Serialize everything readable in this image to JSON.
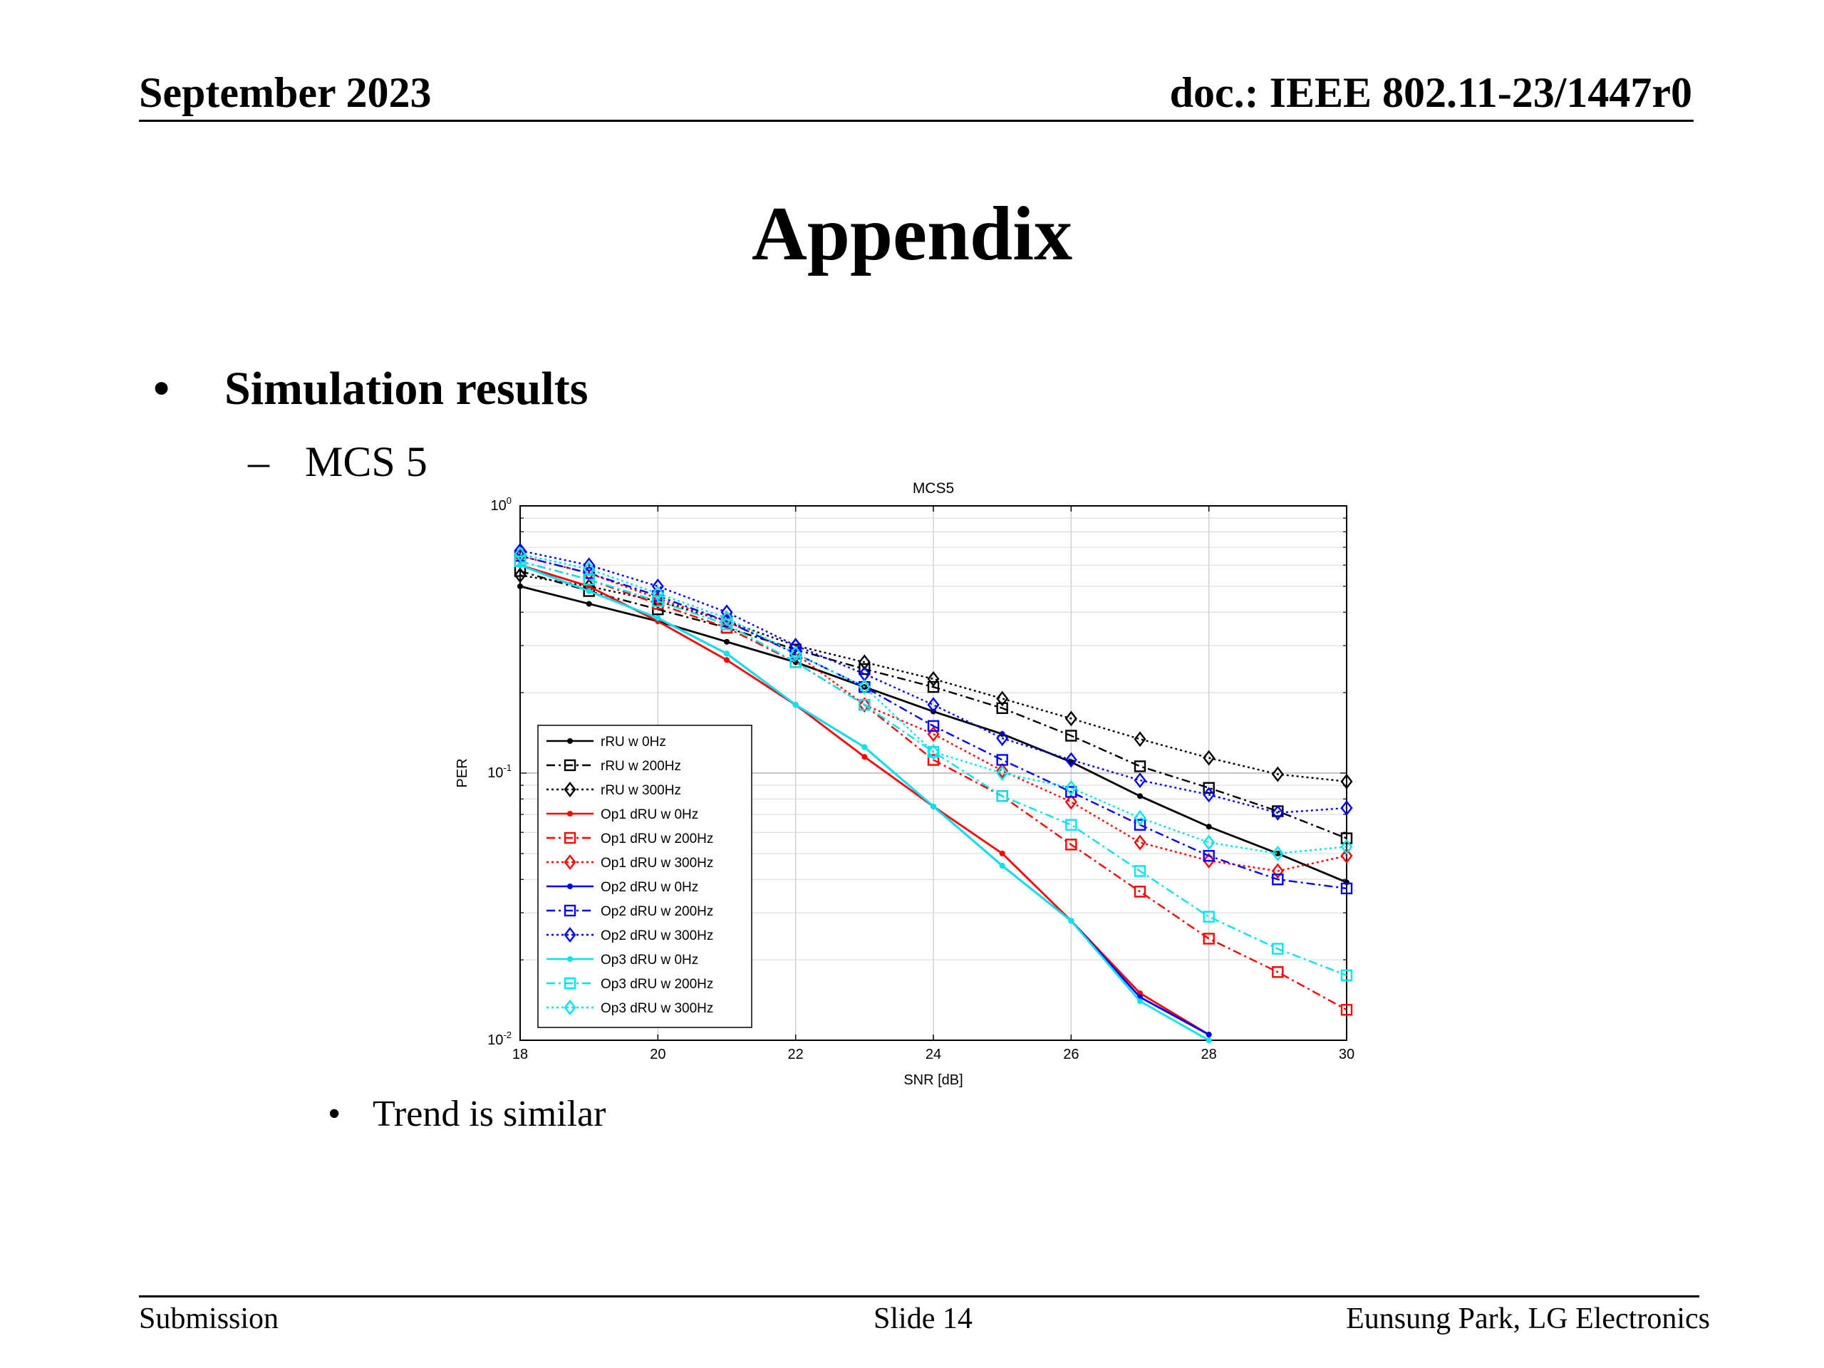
{
  "header": {
    "left": "September 2023",
    "right": "doc.: IEEE 802.11-23/1447r0"
  },
  "slide_title": "Appendix",
  "bullets": {
    "level1_marker": "•",
    "level1": "Simulation results",
    "level2_marker": "–",
    "level2": "MCS 5",
    "level3_marker": "•",
    "level3": "Trend is similar"
  },
  "footer": {
    "left": "Submission",
    "center": "Slide 14",
    "right": "Eunsung Park, LG Electronics"
  },
  "chart_data": {
    "type": "line",
    "title": "MCS5",
    "xlabel": "SNR [dB]",
    "ylabel": "PER",
    "xlim": [
      18,
      30
    ],
    "ylim": [
      0.01,
      1
    ],
    "yscale": "log",
    "grid": true,
    "legend_position": "bottom-left",
    "x_ticks": [
      18,
      20,
      22,
      24,
      26,
      28,
      30
    ],
    "y_ticks": [
      {
        "value": 1,
        "base": "10",
        "exp": "0"
      },
      {
        "value": 0.1,
        "base": "10",
        "exp": "-1"
      },
      {
        "value": 0.01,
        "base": "10",
        "exp": "-2"
      }
    ],
    "x": [
      18,
      19,
      20,
      21,
      22,
      23,
      24,
      25,
      26,
      27,
      28,
      29,
      30
    ],
    "series": [
      {
        "name": "rRU w 0Hz",
        "color": "#000000",
        "dash": "solid",
        "marker": "dot",
        "values": [
          0.5,
          0.43,
          0.37,
          0.31,
          0.26,
          0.21,
          0.17,
          0.14,
          0.11,
          0.082,
          0.063,
          0.05,
          0.039
        ]
      },
      {
        "name": "rRU w 200Hz",
        "color": "#000000",
        "dash": "dashdot",
        "marker": "square",
        "values": [
          0.57,
          0.48,
          0.41,
          0.35,
          0.29,
          0.245,
          0.21,
          0.175,
          0.138,
          0.106,
          0.088,
          0.072,
          0.057
        ]
      },
      {
        "name": "rRU w 300Hz",
        "color": "#000000",
        "dash": "dotted",
        "marker": "diamond",
        "values": [
          0.55,
          0.5,
          0.44,
          0.37,
          0.3,
          0.26,
          0.225,
          0.19,
          0.16,
          0.134,
          0.114,
          0.099,
          0.093
        ]
      },
      {
        "name": "Op1 dRU w 0Hz",
        "color": "#ff0000",
        "dash": "solid",
        "marker": "dot",
        "values": [
          0.6,
          0.5,
          0.37,
          0.265,
          0.18,
          0.115,
          0.075,
          0.05,
          0.028,
          0.015,
          0.0105,
          null,
          null
        ]
      },
      {
        "name": "Op1 dRU w 200Hz",
        "color": "#ff0000",
        "dash": "dashdot",
        "marker": "square",
        "values": [
          0.62,
          0.53,
          0.43,
          0.35,
          0.26,
          0.18,
          0.112,
          0.082,
          0.054,
          0.036,
          0.024,
          0.018,
          0.013
        ]
      },
      {
        "name": "Op1 dRU w 300Hz",
        "color": "#ff0000",
        "dash": "dotted",
        "marker": "diamond",
        "values": [
          0.65,
          0.56,
          0.45,
          0.37,
          0.28,
          0.18,
          0.14,
          0.102,
          0.078,
          0.055,
          0.047,
          0.043,
          0.049
        ]
      },
      {
        "name": "Op2 dRU w 0Hz",
        "color": "#0000ff",
        "dash": "solid",
        "marker": "dot",
        "values": [
          0.6,
          0.48,
          0.38,
          0.28,
          0.18,
          0.125,
          0.075,
          0.045,
          0.028,
          0.0145,
          0.0105,
          null,
          null
        ]
      },
      {
        "name": "Op2 dRU w 200Hz",
        "color": "#0000ff",
        "dash": "dashdot",
        "marker": "square",
        "values": [
          0.65,
          0.56,
          0.46,
          0.37,
          0.28,
          0.21,
          0.15,
          0.112,
          0.085,
          0.064,
          0.049,
          0.04,
          0.037
        ]
      },
      {
        "name": "Op2 dRU w 300Hz",
        "color": "#0000ff",
        "dash": "dotted",
        "marker": "diamond",
        "values": [
          0.68,
          0.6,
          0.5,
          0.4,
          0.3,
          0.235,
          0.18,
          0.135,
          0.112,
          0.094,
          0.083,
          0.071,
          0.074
        ]
      },
      {
        "name": "Op3 dRU w 0Hz",
        "color": "#00e5ee",
        "dash": "solid",
        "marker": "dot",
        "values": [
          0.6,
          0.48,
          0.38,
          0.28,
          0.18,
          0.125,
          0.075,
          0.045,
          0.028,
          0.014,
          0.01,
          null,
          null
        ]
      },
      {
        "name": "Op3 dRU w 200Hz",
        "color": "#00e5ee",
        "dash": "dashdot",
        "marker": "square",
        "values": [
          0.62,
          0.53,
          0.44,
          0.36,
          0.26,
          0.18,
          0.12,
          0.082,
          0.064,
          0.043,
          0.029,
          0.022,
          0.0175
        ]
      },
      {
        "name": "Op3 dRU w 300Hz",
        "color": "#00e5ee",
        "dash": "dotted",
        "marker": "diamond",
        "values": [
          0.66,
          0.58,
          0.47,
          0.38,
          0.28,
          0.21,
          0.12,
          0.1,
          0.088,
          0.068,
          0.055,
          0.05,
          0.053
        ]
      }
    ]
  }
}
